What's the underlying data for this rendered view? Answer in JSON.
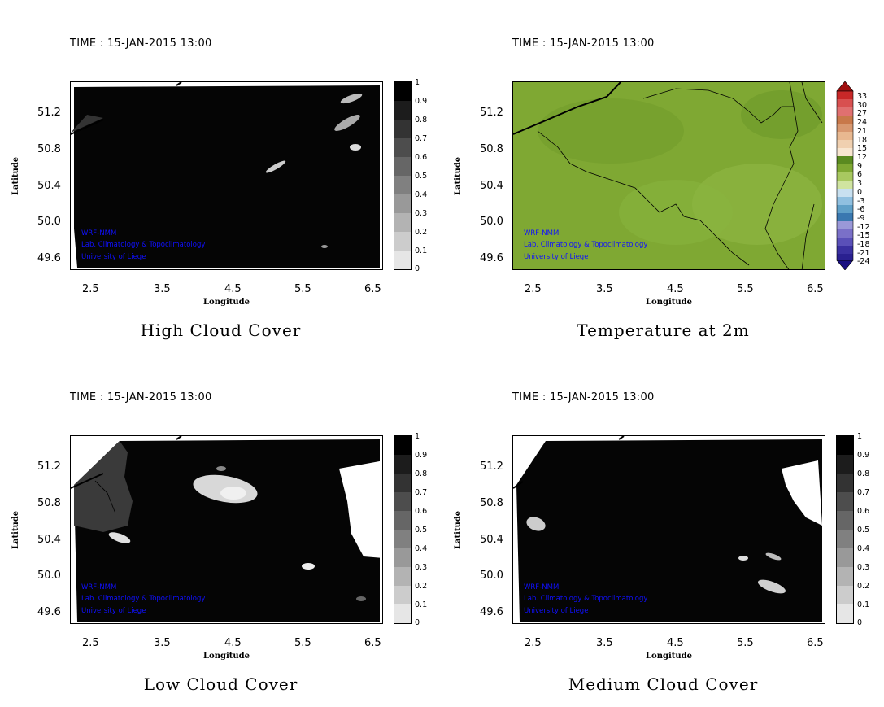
{
  "panels": [
    {
      "time": "TIME : 15-JAN-2015 13:00",
      "caption": "High Cloud Cover"
    },
    {
      "time": "TIME : 15-JAN-2015 13:00",
      "caption": "Temperature at 2m"
    },
    {
      "time": "TIME : 15-JAN-2015 13:00",
      "caption": "Low Cloud Cover"
    },
    {
      "time": "TIME : 15-JAN-2015 13:00",
      "caption": "Medium Cloud Cover"
    }
  ],
  "axes": {
    "xlabel": "Longitude",
    "ylabel": "Latitude",
    "xticks": [
      "2.5",
      "3.5",
      "4.5",
      "5.5",
      "6.5"
    ],
    "yticks": [
      "51.2",
      "50.8",
      "50.4",
      "50.0",
      "49.6"
    ]
  },
  "credits": [
    "WRF-NMM",
    "Lab. Climatology & Topoclimatology",
    "University of Liege"
  ],
  "cloud_colorbar": [
    "1",
    "0.9",
    "0.8",
    "0.7",
    "0.6",
    "0.5",
    "0.4",
    "0.3",
    "0.2",
    "0.1",
    "0"
  ],
  "temperature_colorbar": [
    "33",
    "30",
    "27",
    "24",
    "21",
    "18",
    "15",
    "12",
    "9",
    "6",
    "3",
    "0",
    "-3",
    "-6",
    "-9",
    "-12",
    "-15",
    "-18",
    "-21",
    "-24"
  ],
  "colors": {
    "credit_text": "#1010ff",
    "temperature_field": "#7fa833"
  }
}
